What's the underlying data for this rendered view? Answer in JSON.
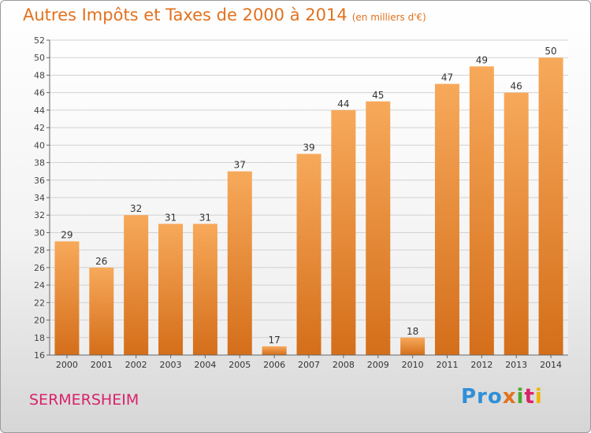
{
  "header": {
    "title": "Autres Impôts et Taxes de 2000 à 2014",
    "unit": "(en milliers d'€)"
  },
  "footer": {
    "commune": "SERMERSHEIM",
    "logo": [
      "Pro",
      "x",
      "i",
      "t",
      "i"
    ]
  },
  "colors": {
    "bar_light": "#f7a95a",
    "bar_dark": "#d46e1a",
    "title": "#e2711d",
    "commune": "#d8226a"
  },
  "chart_data": {
    "type": "bar",
    "title": "Autres Impôts et Taxes de 2000 à 2014",
    "subtitle": "(en milliers d'€)",
    "categories": [
      "2000",
      "2001",
      "2002",
      "2003",
      "2004",
      "2005",
      "2006",
      "2007",
      "2008",
      "2009",
      "2010",
      "2011",
      "2012",
      "2013",
      "2014"
    ],
    "values": [
      29,
      26,
      32,
      31,
      31,
      37,
      17,
      39,
      44,
      45,
      18,
      47,
      49,
      46,
      50
    ],
    "ylim": [
      16,
      52
    ],
    "yticks": [
      16,
      18,
      20,
      22,
      24,
      26,
      28,
      30,
      32,
      34,
      36,
      38,
      40,
      42,
      44,
      46,
      48,
      50,
      52
    ],
    "grid": true,
    "legend": "none"
  }
}
